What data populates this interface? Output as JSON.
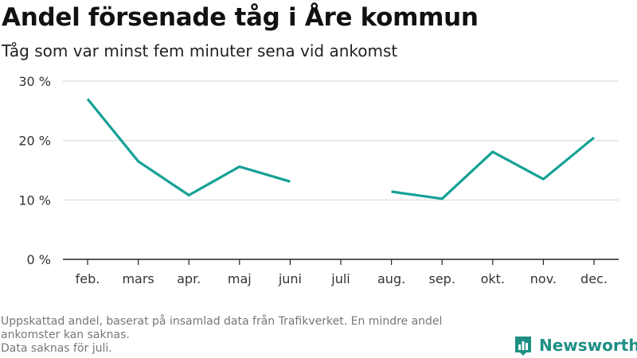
{
  "header": {
    "title": "Andel försenade tåg i Åre kommun",
    "subtitle": "Tåg som var minst fem minuter sena vid ankomst"
  },
  "chart_data": {
    "type": "line",
    "categories": [
      "feb.",
      "mars",
      "apr.",
      "maj",
      "juni",
      "juli",
      "aug.",
      "sep.",
      "okt.",
      "nov.",
      "dec."
    ],
    "series": [
      {
        "values": [
          27,
          16.5,
          10.8,
          15.6,
          13.1,
          null,
          11.4,
          10.2,
          18.1,
          13.5,
          20.5
        ]
      }
    ],
    "ylim": [
      0,
      30
    ],
    "yticks": [
      0,
      10,
      20,
      30
    ],
    "ytick_labels": [
      "0 %",
      "10 %",
      "20 %",
      "30 %"
    ],
    "grid": true,
    "line_color": "#14a195"
  },
  "footer": {
    "note_line1": "Uppskattad andel, baserat på insamlad data från Trafikverket. En mindre andel ankomster kan saknas.",
    "note_line2": "Data saknas för juli."
  },
  "brand": {
    "name": "Newsworthy",
    "logo_icon": "bar-chart-icon",
    "color": "#1f8f84"
  }
}
